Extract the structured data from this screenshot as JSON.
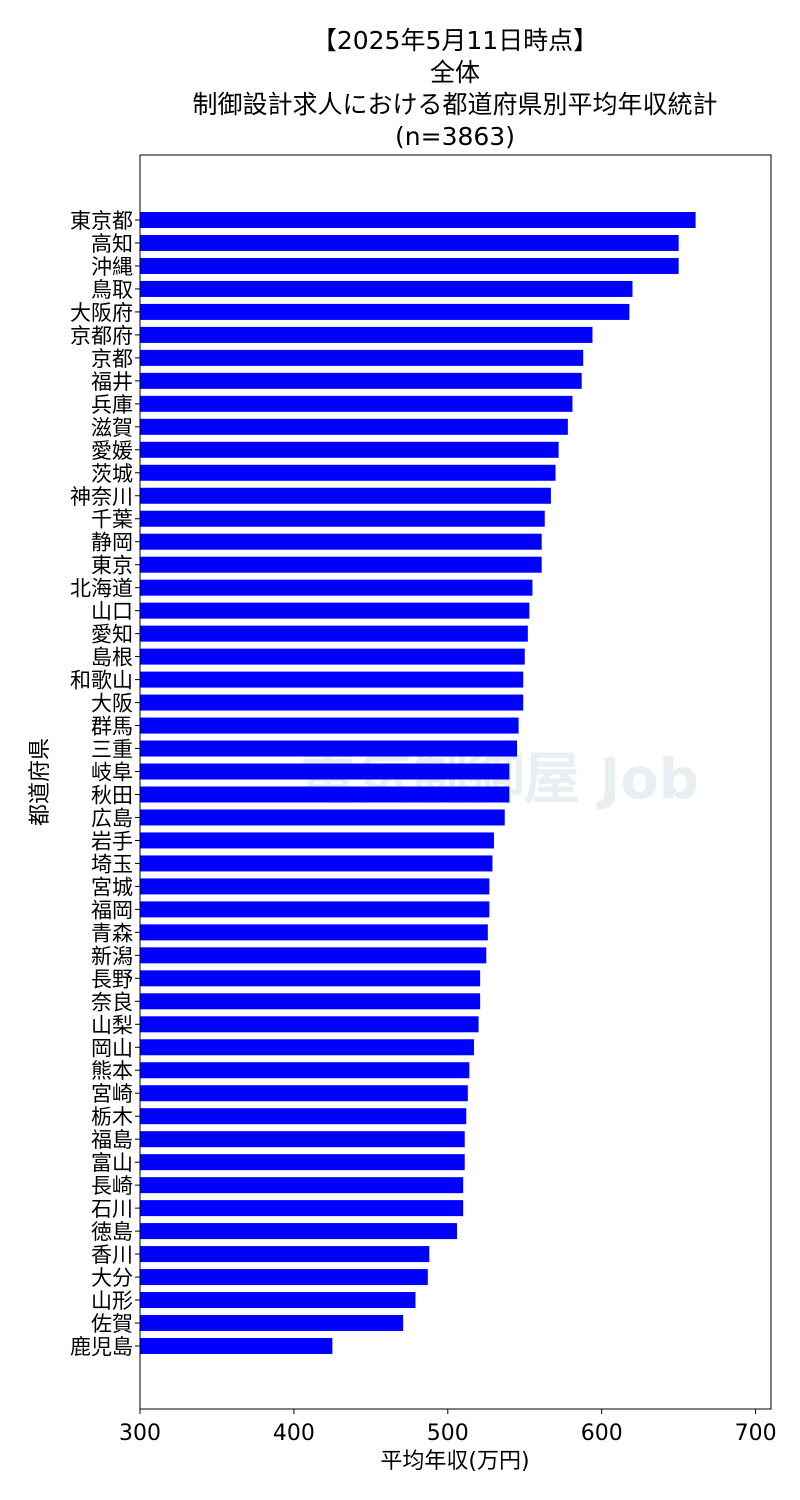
{
  "chart_data": {
    "type": "bar",
    "orientation": "horizontal",
    "title_lines": [
      "【2025年5月11日時点】",
      "全体",
      "制御設計求人における都道府県別平均年収統計",
      "(n=3863)"
    ],
    "xlabel": "平均年収(万円)",
    "ylabel": "都道府県",
    "xlim": [
      300,
      710
    ],
    "xticks": [
      300,
      400,
      500,
      600,
      700
    ],
    "bar_color": "#0000ff",
    "grid": false,
    "watermark": "電気制御屋 Job",
    "categories": [
      "東京都",
      "高知",
      "沖縄",
      "鳥取",
      "大阪府",
      "京都府",
      "京都",
      "福井",
      "兵庫",
      "滋賀",
      "愛媛",
      "茨城",
      "神奈川",
      "千葉",
      "静岡",
      "東京",
      "北海道",
      "山口",
      "愛知",
      "島根",
      "和歌山",
      "大阪",
      "群馬",
      "三重",
      "岐阜",
      "秋田",
      "広島",
      "岩手",
      "埼玉",
      "宮城",
      "福岡",
      "青森",
      "新潟",
      "長野",
      "奈良",
      "山梨",
      "岡山",
      "熊本",
      "宮崎",
      "栃木",
      "福島",
      "富山",
      "長崎",
      "石川",
      "徳島",
      "香川",
      "大分",
      "山形",
      "佐賀",
      "鹿児島"
    ],
    "values": [
      661,
      650,
      650,
      620,
      618,
      594,
      588,
      587,
      581,
      578,
      572,
      570,
      567,
      563,
      561,
      561,
      555,
      553,
      552,
      550,
      549,
      549,
      546,
      545,
      540,
      540,
      537,
      530,
      529,
      527,
      527,
      526,
      525,
      521,
      521,
      520,
      517,
      514,
      513,
      512,
      511,
      511,
      510,
      510,
      506,
      488,
      487,
      479,
      471,
      425
    ]
  }
}
